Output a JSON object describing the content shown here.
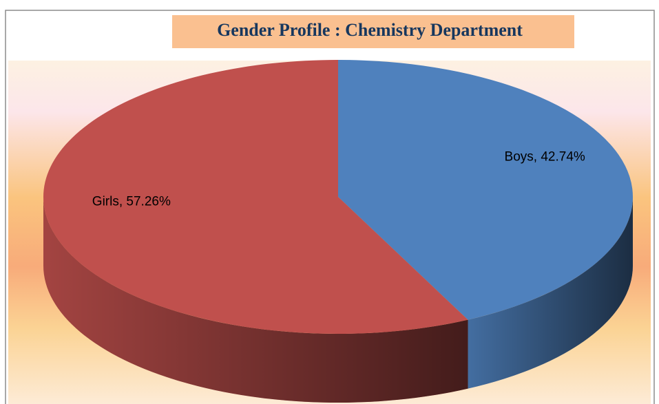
{
  "chart_data": {
    "type": "pie3d",
    "title": "Gender Profile : Chemistry Department",
    "values": [
      42.74,
      57.26
    ],
    "value_labels": [
      "Boys, 42.74%",
      "Girls, 57.26%"
    ],
    "colors": [
      "#4f81bd",
      "#c0504d"
    ]
  }
}
